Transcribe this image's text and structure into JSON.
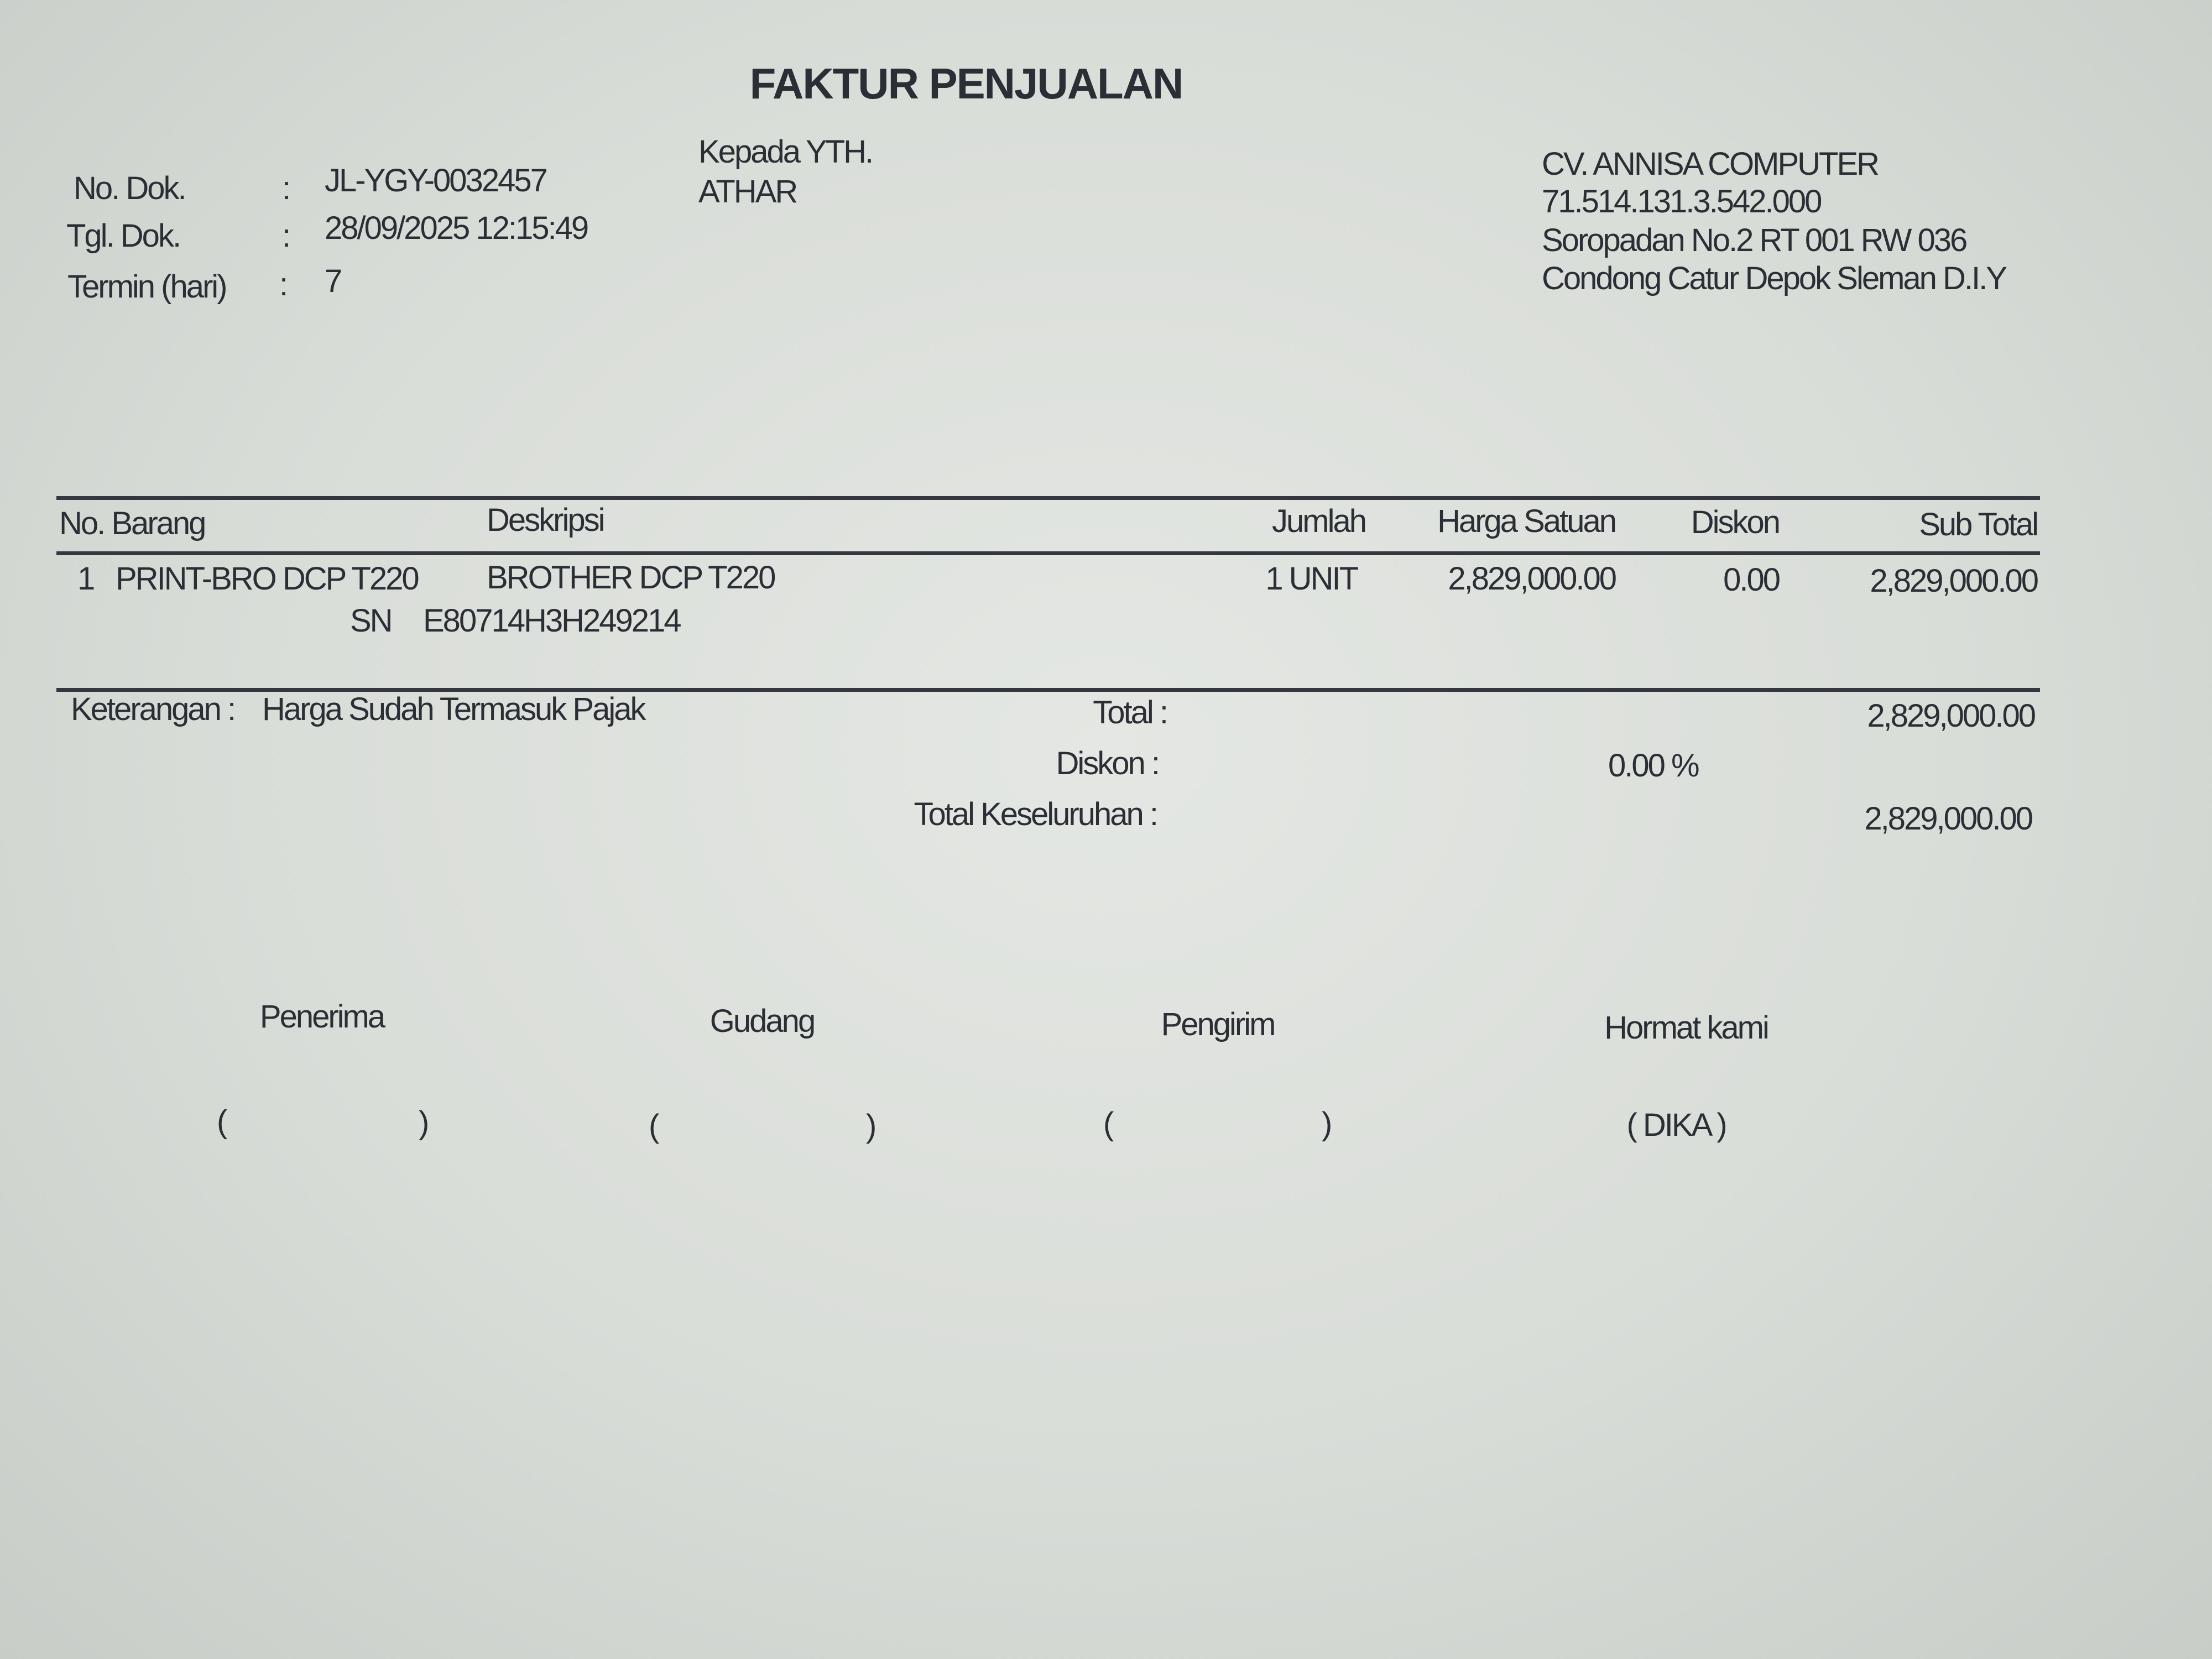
{
  "title": "FAKTUR PENJUALAN",
  "doc": {
    "no_dok_label": "No. Dok.",
    "no_dok": "JL-YGY-0032457",
    "tgl_dok_label": "Tgl. Dok.",
    "tgl_dok": "28/09/2025 12:15:49",
    "termin_label": "Termin (hari)",
    "termin": "7",
    "colon": ":"
  },
  "recipient": {
    "label": "Kepada YTH.",
    "name": "ATHAR"
  },
  "company": {
    "name": "CV. ANNISA COMPUTER",
    "npwp": "71.514.131.3.542.000",
    "address1": "Soropadan No.2 RT 001 RW 036",
    "address2": "Condong Catur Depok Sleman D.I.Y"
  },
  "table": {
    "headers": {
      "no_barang": "No. Barang",
      "deskripsi": "Deskripsi",
      "jumlah": "Jumlah",
      "harga": "Harga Satuan",
      "diskon": "Diskon",
      "subtotal": "Sub Total"
    },
    "rows": [
      {
        "no": "1",
        "kode": "PRINT-BRO DCP T220",
        "deskripsi": "BROTHER DCP T220",
        "sn_label": "SN",
        "sn": "E80714H3H249214",
        "jumlah": "1 UNIT",
        "harga": "2,829,000.00",
        "diskon": "0.00",
        "subtotal": "2,829,000.00"
      }
    ]
  },
  "summary": {
    "keterangan_label": "Keterangan :",
    "keterangan": "Harga Sudah Termasuk Pajak",
    "total_label": "Total :",
    "total": "2,829,000.00",
    "diskon_label": "Diskon :",
    "diskon_pct": "0.00  %",
    "grand_label": "Total Keseluruhan :",
    "grand": "2,829,000.00"
  },
  "signatures": {
    "penerima": "Penerima",
    "gudang": "Gudang",
    "pengirim": "Pengirim",
    "hormat": "Hormat kami",
    "open": "(",
    "close": ")",
    "signer": "( DIKA )"
  }
}
